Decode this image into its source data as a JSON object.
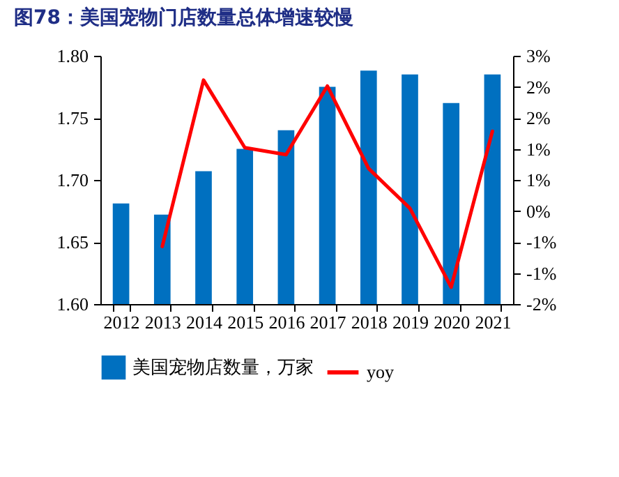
{
  "chart_data": {
    "type": "bar",
    "title": "图78：美国宠物门店数量总体增速较慢",
    "categories": [
      "2012",
      "2013",
      "2014",
      "2015",
      "2016",
      "2017",
      "2018",
      "2019",
      "2020",
      "2021"
    ],
    "series": [
      {
        "name": "美国宠物店数量，万家",
        "type": "bar",
        "color": "#0070c0",
        "values": [
          1.681,
          1.672,
          1.707,
          1.725,
          1.74,
          1.775,
          1.788,
          1.785,
          1.762,
          1.785
        ]
      },
      {
        "name": "yoy",
        "type": "line",
        "axis": "y2",
        "color": "#ff0000",
        "values": [
          null,
          -0.84,
          2.51,
          1.15,
          1.01,
          2.39,
          0.73,
          -0.07,
          -1.66,
          1.48
        ]
      }
    ],
    "ylim": [
      1.6,
      1.8
    ],
    "yticks": [
      {
        "value": 1.6,
        "label": "1.60"
      },
      {
        "value": 1.65,
        "label": "1.65"
      },
      {
        "value": 1.7,
        "label": "1.70"
      },
      {
        "value": 1.75,
        "label": "1.75"
      },
      {
        "value": 1.8,
        "label": "1.80"
      }
    ],
    "y2lim": [
      -2,
      3
    ],
    "y2ticks": [
      {
        "value": -2,
        "label": "-2%"
      },
      {
        "value": -1.375,
        "label": "-1%"
      },
      {
        "value": -0.75,
        "label": "-1%"
      },
      {
        "value": -0.125,
        "label": "0%"
      },
      {
        "value": 0.5,
        "label": "1%"
      },
      {
        "value": 1.125,
        "label": "1%"
      },
      {
        "value": 1.75,
        "label": "2%"
      },
      {
        "value": 2.375,
        "label": "2%"
      },
      {
        "value": 3,
        "label": "3%"
      }
    ],
    "grid": false,
    "legend": "bottom"
  }
}
